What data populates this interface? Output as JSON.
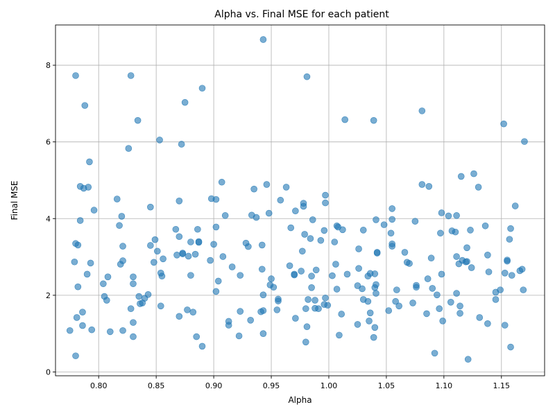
{
  "chart_data": {
    "type": "scatter",
    "title": "Alpha vs. Final MSE for each patient",
    "xlabel": "Alpha",
    "ylabel": "Final MSE",
    "xlim": [
      0.7625,
      1.1875
    ],
    "ylim": [
      -0.1,
      9.05
    ],
    "xticks": [
      0.8,
      0.85,
      0.9,
      0.95,
      1.0,
      1.05,
      1.1,
      1.15
    ],
    "xtick_labels": [
      "0.80",
      "0.85",
      "0.90",
      "0.95",
      "1.00",
      "1.05",
      "1.10",
      "1.15"
    ],
    "yticks": [
      0,
      2,
      4,
      6,
      8
    ],
    "ytick_labels": [
      "0",
      "2",
      "4",
      "6",
      "8"
    ],
    "grid": true,
    "marker_color": "#1f77b4",
    "marker_alpha": 0.6,
    "points": [
      [
        0.775,
        1.08
      ],
      [
        0.779,
        2.87
      ],
      [
        0.78,
        0.42
      ],
      [
        0.781,
        1.42
      ],
      [
        0.782,
        3.31
      ],
      [
        0.78,
        3.35
      ],
      [
        0.78,
        7.73
      ],
      [
        0.782,
        2.22
      ],
      [
        0.784,
        3.95
      ],
      [
        0.784,
        4.84
      ],
      [
        0.786,
        1.21
      ],
      [
        0.786,
        1.56
      ],
      [
        0.787,
        4.79
      ],
      [
        0.788,
        6.95
      ],
      [
        0.79,
        2.55
      ],
      [
        0.791,
        4.82
      ],
      [
        0.792,
        5.48
      ],
      [
        0.793,
        2.84
      ],
      [
        0.794,
        1.1
      ],
      [
        0.796,
        4.22
      ],
      [
        0.804,
        2.3
      ],
      [
        0.805,
        1.97
      ],
      [
        0.807,
        1.87
      ],
      [
        0.808,
        2.48
      ],
      [
        0.81,
        1.05
      ],
      [
        0.816,
        4.51
      ],
      [
        0.818,
        3.82
      ],
      [
        0.819,
        2.81
      ],
      [
        0.82,
        4.06
      ],
      [
        0.821,
        3.28
      ],
      [
        0.821,
        2.9
      ],
      [
        0.821,
        1.08
      ],
      [
        0.826,
        5.83
      ],
      [
        0.828,
        7.73
      ],
      [
        0.828,
        1.65
      ],
      [
        0.83,
        2.3
      ],
      [
        0.83,
        2.48
      ],
      [
        0.83,
        1.29
      ],
      [
        0.83,
        0.92
      ],
      [
        0.834,
        6.56
      ],
      [
        0.835,
        1.97
      ],
      [
        0.836,
        1.78
      ],
      [
        0.838,
        1.8
      ],
      [
        0.84,
        1.92
      ],
      [
        0.843,
        2.02
      ],
      [
        0.845,
        4.3
      ],
      [
        0.845,
        3.3
      ],
      [
        0.848,
        2.86
      ],
      [
        0.849,
        3.45
      ],
      [
        0.851,
        3.15
      ],
      [
        0.853,
        6.05
      ],
      [
        0.854,
        2.58
      ],
      [
        0.854,
        1.72
      ],
      [
        0.855,
        2.5
      ],
      [
        0.856,
        2.95
      ],
      [
        0.867,
        3.72
      ],
      [
        0.868,
        3.05
      ],
      [
        0.87,
        4.46
      ],
      [
        0.87,
        1.45
      ],
      [
        0.87,
        3.53
      ],
      [
        0.872,
        5.94
      ],
      [
        0.873,
        3.08
      ],
      [
        0.873,
        3.1
      ],
      [
        0.875,
        7.03
      ],
      [
        0.877,
        1.62
      ],
      [
        0.878,
        3.02
      ],
      [
        0.88,
        2.52
      ],
      [
        0.88,
        3.39
      ],
      [
        0.882,
        1.56
      ],
      [
        0.884,
        3.07
      ],
      [
        0.885,
        0.92
      ],
      [
        0.886,
        3.72
      ],
      [
        0.887,
        3.4
      ],
      [
        0.887,
        3.38
      ],
      [
        0.89,
        7.4
      ],
      [
        0.89,
        0.67
      ],
      [
        0.897,
        2.91
      ],
      [
        0.898,
        4.52
      ],
      [
        0.9,
        3.33
      ],
      [
        0.902,
        4.5
      ],
      [
        0.902,
        3.78
      ],
      [
        0.902,
        2.1
      ],
      [
        0.904,
        2.37
      ],
      [
        0.907,
        4.95
      ],
      [
        0.908,
        3.01
      ],
      [
        0.91,
        4.08
      ],
      [
        0.913,
        1.22
      ],
      [
        0.913,
        1.32
      ],
      [
        0.916,
        2.74
      ],
      [
        0.922,
        0.94
      ],
      [
        0.923,
        2.52
      ],
      [
        0.923,
        1.58
      ],
      [
        0.928,
        3.36
      ],
      [
        0.93,
        3.27
      ],
      [
        0.932,
        1.35
      ],
      [
        0.933,
        4.09
      ],
      [
        0.935,
        4.77
      ],
      [
        0.937,
        4.03
      ],
      [
        0.941,
        1.57
      ],
      [
        0.942,
        3.31
      ],
      [
        0.942,
        2.68
      ],
      [
        0.943,
        2.01
      ],
      [
        0.943,
        1.6
      ],
      [
        0.943,
        1.0
      ],
      [
        0.943,
        8.67
      ],
      [
        0.946,
        4.89
      ],
      [
        0.948,
        4.14
      ],
      [
        0.949,
        2.27
      ],
      [
        0.95,
        2.43
      ],
      [
        0.952,
        2.21
      ],
      [
        0.955,
        1.62
      ],
      [
        0.956,
        1.85
      ],
      [
        0.956,
        1.9
      ],
      [
        0.958,
        4.48
      ],
      [
        0.963,
        4.82
      ],
      [
        0.966,
        2.77
      ],
      [
        0.967,
        3.76
      ],
      [
        0.97,
        2.53
      ],
      [
        0.97,
        2.55
      ],
      [
        0.971,
        1.4
      ],
      [
        0.971,
        4.2
      ],
      [
        0.976,
        2.63
      ],
      [
        0.977,
        3.15
      ],
      [
        0.978,
        4.4
      ],
      [
        0.978,
        4.32
      ],
      [
        0.979,
        3.59
      ],
      [
        0.98,
        0.78
      ],
      [
        0.98,
        1.65
      ],
      [
        0.981,
        1.18
      ],
      [
        0.981,
        7.7
      ],
      [
        0.982,
        1.89
      ],
      [
        0.984,
        3.48
      ],
      [
        0.985,
        2.5
      ],
      [
        0.985,
        2.2
      ],
      [
        0.986,
        3.97
      ],
      [
        0.988,
        1.66
      ],
      [
        0.988,
        1.87
      ],
      [
        0.989,
        2.66
      ],
      [
        0.991,
        1.65
      ],
      [
        0.993,
        3.43
      ],
      [
        0.996,
        1.76
      ],
      [
        0.996,
        3.69
      ],
      [
        0.997,
        1.93
      ],
      [
        0.997,
        4.41
      ],
      [
        0.997,
        4.61
      ],
      [
        0.999,
        1.74
      ],
      [
        1.003,
        2.51
      ],
      [
        1.005,
        3.39
      ],
      [
        1.006,
        2.81
      ],
      [
        1.007,
        3.81
      ],
      [
        1.007,
        2.16
      ],
      [
        1.008,
        3.78
      ],
      [
        1.009,
        0.96
      ],
      [
        1.011,
        1.51
      ],
      [
        1.012,
        3.71
      ],
      [
        1.014,
        6.58
      ],
      [
        1.016,
        2.55
      ],
      [
        1.025,
        1.24
      ],
      [
        1.025,
        2.25
      ],
      [
        1.026,
        2.7
      ],
      [
        1.026,
        3.21
      ],
      [
        1.029,
        2.17
      ],
      [
        1.03,
        1.89
      ],
      [
        1.03,
        3.7
      ],
      [
        1.034,
        1.84
      ],
      [
        1.034,
        2.5
      ],
      [
        1.035,
        1.33
      ],
      [
        1.036,
        1.54
      ],
      [
        1.036,
        2.57
      ],
      [
        1.039,
        0.9
      ],
      [
        1.039,
        6.56
      ],
      [
        1.04,
        2.56
      ],
      [
        1.04,
        1.16
      ],
      [
        1.04,
        2.2
      ],
      [
        1.041,
        3.97
      ],
      [
        1.041,
        2.05
      ],
      [
        1.041,
        2.28
      ],
      [
        1.042,
        3.1
      ],
      [
        1.042,
        3.12
      ],
      [
        1.048,
        3.84
      ],
      [
        1.052,
        1.6
      ],
      [
        1.054,
        3.62
      ],
      [
        1.055,
        3.34
      ],
      [
        1.055,
        3.28
      ],
      [
        1.055,
        4.26
      ],
      [
        1.055,
        3.98
      ],
      [
        1.058,
        1.84
      ],
      [
        1.059,
        2.14
      ],
      [
        1.061,
        1.72
      ],
      [
        1.066,
        3.12
      ],
      [
        1.068,
        2.86
      ],
      [
        1.07,
        2.83
      ],
      [
        1.073,
        1.8
      ],
      [
        1.075,
        3.93
      ],
      [
        1.076,
        2.26
      ],
      [
        1.076,
        2.21
      ],
      [
        1.081,
        6.81
      ],
      [
        1.081,
        4.89
      ],
      [
        1.085,
        1.52
      ],
      [
        1.086,
        2.43
      ],
      [
        1.087,
        4.84
      ],
      [
        1.089,
        2.97
      ],
      [
        1.09,
        2.18
      ],
      [
        1.092,
        0.49
      ],
      [
        1.094,
        2.01
      ],
      [
        1.096,
        1.65
      ],
      [
        1.097,
        3.62
      ],
      [
        1.098,
        4.15
      ],
      [
        1.098,
        2.55
      ],
      [
        1.099,
        1.33
      ],
      [
        1.104,
        4.07
      ],
      [
        1.106,
        1.82
      ],
      [
        1.107,
        3.68
      ],
      [
        1.11,
        3.65
      ],
      [
        1.111,
        2.05
      ],
      [
        1.111,
        3.01
      ],
      [
        1.111,
        4.08
      ],
      [
        1.113,
        2.82
      ],
      [
        1.114,
        1.72
      ],
      [
        1.114,
        1.53
      ],
      [
        1.115,
        5.1
      ],
      [
        1.116,
        2.91
      ],
      [
        1.119,
        2.87
      ],
      [
        1.12,
        2.88
      ],
      [
        1.12,
        3.24
      ],
      [
        1.121,
        0.33
      ],
      [
        1.123,
        3.7
      ],
      [
        1.124,
        2.72
      ],
      [
        1.126,
        5.17
      ],
      [
        1.13,
        4.82
      ],
      [
        1.131,
        1.42
      ],
      [
        1.136,
        3.81
      ],
      [
        1.138,
        1.26
      ],
      [
        1.138,
        3.05
      ],
      [
        1.139,
        2.61
      ],
      [
        1.145,
        1.89
      ],
      [
        1.145,
        2.08
      ],
      [
        1.149,
        2.14
      ],
      [
        1.152,
        6.47
      ],
      [
        1.153,
        1.22
      ],
      [
        1.153,
        2.58
      ],
      [
        1.155,
        2.89
      ],
      [
        1.155,
        2.92
      ],
      [
        1.157,
        3.46
      ],
      [
        1.158,
        3.74
      ],
      [
        1.158,
        0.65
      ],
      [
        1.159,
        2.52
      ],
      [
        1.162,
        4.33
      ],
      [
        1.166,
        2.64
      ],
      [
        1.168,
        2.68
      ],
      [
        1.169,
        2.14
      ],
      [
        1.17,
        6.01
      ]
    ]
  }
}
